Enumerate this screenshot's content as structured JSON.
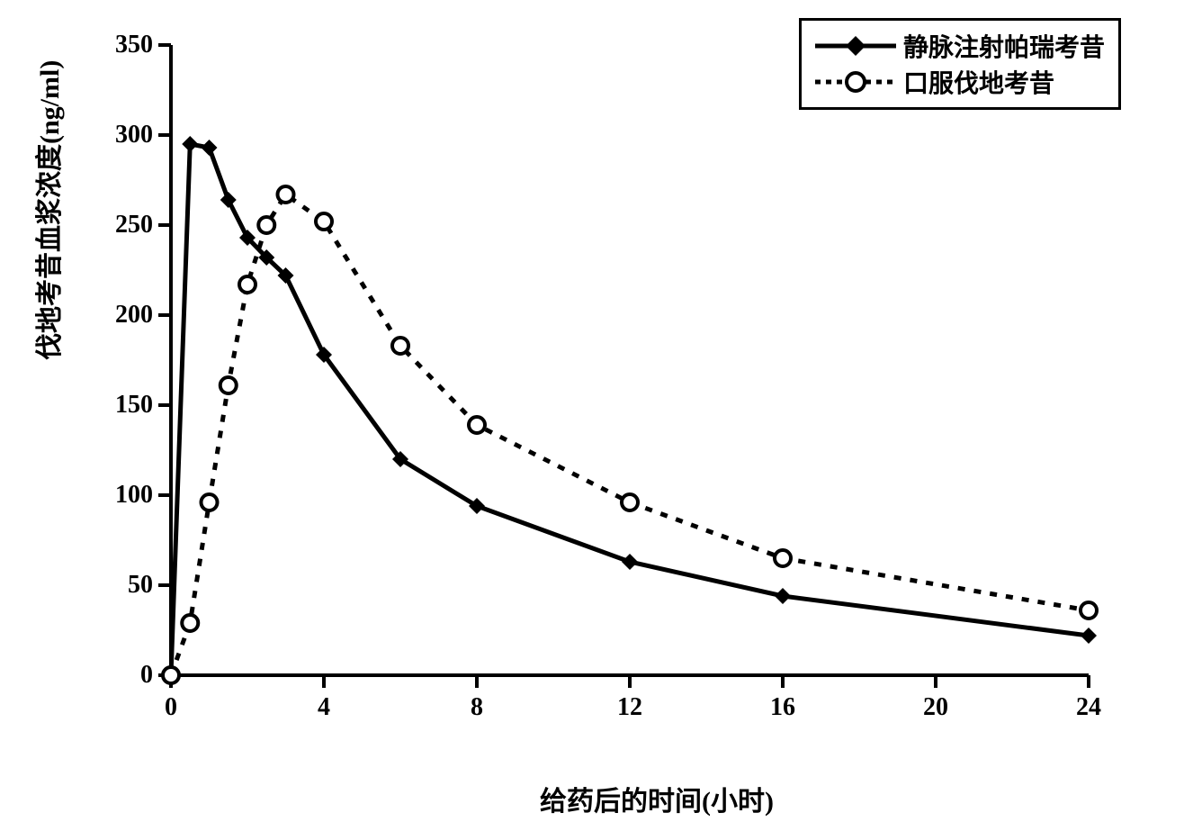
{
  "chart": {
    "type": "line",
    "x_axis_label": "给药后的时间(小时)",
    "y_axis_label": "伐地考昔血浆浓度(ng/ml)",
    "xlim": [
      0,
      24
    ],
    "ylim": [
      0,
      350
    ],
    "x_ticks": [
      0,
      4,
      8,
      12,
      16,
      20,
      24
    ],
    "y_ticks": [
      0,
      50,
      100,
      150,
      200,
      250,
      300,
      350
    ],
    "tick_fontsize": 28,
    "label_fontsize": 30,
    "background_color": "#ffffff",
    "axis_color": "#000000",
    "axis_width": 4,
    "tick_length": 14,
    "series": [
      {
        "name": "静脉注射帕瑞考昔",
        "color": "#000000",
        "line_style": "solid",
        "line_width": 5,
        "marker": "diamond-filled",
        "marker_size": 18,
        "x": [
          0,
          0.5,
          1,
          1.5,
          2,
          2.5,
          3,
          4,
          6,
          8,
          12,
          16,
          24
        ],
        "y": [
          0,
          295,
          293,
          264,
          243,
          232,
          222,
          178,
          120,
          94,
          63,
          44,
          22
        ]
      },
      {
        "name": "口服伐地考昔",
        "color": "#000000",
        "line_style": "dotted",
        "line_width": 5,
        "marker": "circle-open",
        "marker_size": 18,
        "x": [
          0,
          0.5,
          1,
          1.5,
          2,
          2.5,
          3,
          4,
          6,
          8,
          12,
          16,
          24
        ],
        "y": [
          0,
          29,
          96,
          161,
          217,
          250,
          267,
          252,
          183,
          139,
          96,
          65,
          36
        ]
      }
    ],
    "legend": {
      "position": "top-right",
      "border_color": "#000000",
      "border_width": 3,
      "fontsize": 28
    }
  }
}
